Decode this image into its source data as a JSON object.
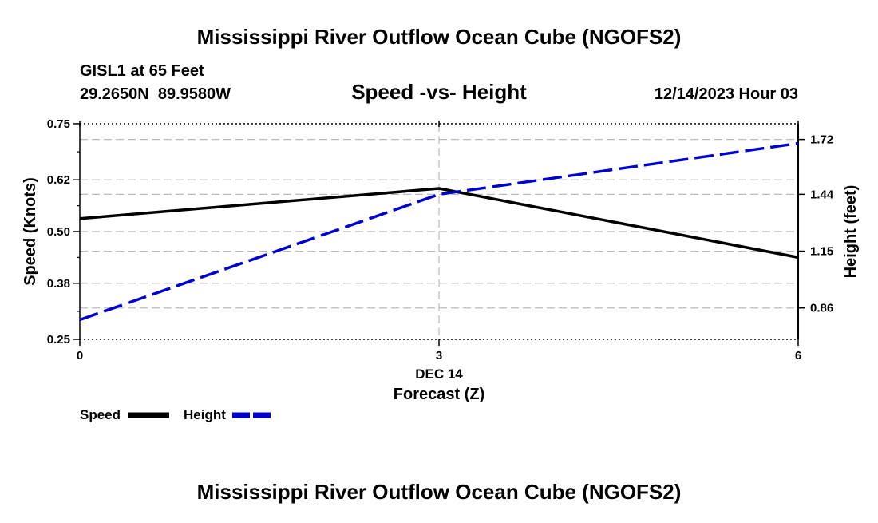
{
  "header": {
    "title": "Mississippi River Outflow Ocean Cube (NGOFS2)",
    "station": "GISL1 at 65 Feet",
    "coords": "29.2650N  89.9580W",
    "subtitle": "Speed -vs- Height",
    "datetime": "12/14/2023 Hour 03"
  },
  "footer": {
    "title": "Mississippi River Outflow Ocean Cube (NGOFS2)"
  },
  "chart_data": {
    "type": "line",
    "title": "Speed -vs- Height",
    "x": [
      0,
      3,
      6
    ],
    "xlim": [
      0,
      6
    ],
    "x_ticks": [
      0,
      3,
      6
    ],
    "x_tick_labels": [
      "0",
      "3",
      "6"
    ],
    "x_date_label": "DEC 14",
    "xlabel": "Forecast (Z)",
    "ylabel_left": "Speed (Knots)",
    "ylabel_right": "Height (feet)",
    "ylim_left": [
      0.25,
      0.75
    ],
    "ylim_right": [
      0.7,
      1.8
    ],
    "y_ticks_left": [
      0.25,
      0.38,
      0.5,
      0.62,
      0.75
    ],
    "y_tick_labels_left": [
      "0.25",
      "0.38",
      "0.50",
      "0.62",
      "0.75"
    ],
    "y_ticks_right": [
      0.86,
      1.15,
      1.44,
      1.72
    ],
    "y_tick_labels_right": [
      "0.86",
      "1.15",
      "1.44",
      "1.72"
    ],
    "grid": true,
    "legend_position": "bottom-left",
    "series": [
      {
        "name": "Speed",
        "axis": "left",
        "values": [
          0.53,
          0.6,
          0.44
        ],
        "color": "#000000",
        "style": "solid"
      },
      {
        "name": "Height",
        "axis": "right",
        "values": [
          0.8,
          1.44,
          1.7
        ],
        "color": "#0000cc",
        "style": "dashed"
      }
    ]
  }
}
